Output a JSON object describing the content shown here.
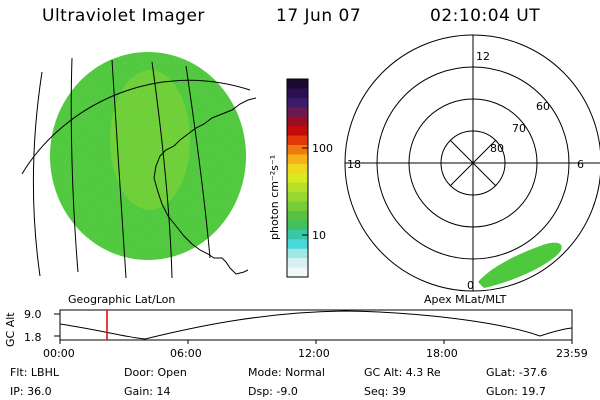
{
  "header": {
    "title": "Ultraviolet Imager",
    "date": "17 Jun 07",
    "time": "02:10:04 UT"
  },
  "colorbar": {
    "unit_label": "photon cm⁻²s⁻¹",
    "ticks": [
      "100",
      "10"
    ],
    "colors": [
      "#1a0b2e",
      "#2a1050",
      "#3b1c6a",
      "#6a1a50",
      "#9a0f24",
      "#c40a0a",
      "#e03a0a",
      "#f07a10",
      "#f8b018",
      "#f0d820",
      "#d8ea20",
      "#b8e028",
      "#98d830",
      "#78cc38",
      "#5ac040",
      "#40c060",
      "#38c8a8",
      "#48d8d8",
      "#a0e8e8",
      "#d8f0f0",
      "#f0f8f8"
    ]
  },
  "left_panel": {
    "caption": "Geographic Lat/Lon",
    "disk_color": "#4ec83c"
  },
  "right_panel": {
    "caption": "Apex MLat/MLT",
    "mlt_labels": {
      "top": "12",
      "left": "18",
      "right": "6",
      "bottom": "0"
    },
    "lat_labels": [
      "60",
      "70",
      "80"
    ]
  },
  "orbit_plot": {
    "ylabel": "GC Alt",
    "yticks": [
      "9.0",
      "1.8"
    ],
    "xticks": [
      "00:00",
      "06:00",
      "12:00",
      "18:00",
      "23:59"
    ]
  },
  "info": {
    "flt": "Flt: LBHL",
    "ip": "IP: 36.0",
    "door": "Door: Open",
    "gain": "Gain: 14",
    "mode": "Mode: Normal",
    "dsp": "Dsp:    -9.0",
    "gc_alt": "GC Alt: 4.3 Re",
    "seq": "Seq: 39",
    "glat": "GLat: -37.6",
    "glon": "GLon:  19.7"
  }
}
